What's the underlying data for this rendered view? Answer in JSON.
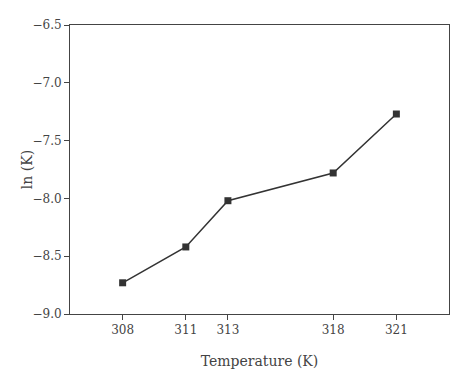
{
  "chart_data": {
    "type": "line",
    "x": [
      308,
      311,
      313,
      318,
      321
    ],
    "values": [
      -8.73,
      -8.42,
      -8.02,
      -7.78,
      -7.27
    ],
    "xlabel": "Temperature (K)",
    "ylabel": "ln (K)",
    "xlim": [
      305.5,
      323.5
    ],
    "ylim": [
      -9.0,
      -6.5
    ],
    "xticks": [
      308,
      311,
      313,
      318,
      321
    ],
    "yticks": [
      {
        "value": -9.0,
        "label": "−9.0"
      },
      {
        "value": -8.5,
        "label": "−8.5"
      },
      {
        "value": -8.0,
        "label": "−8.0"
      },
      {
        "value": -7.5,
        "label": "−7.5"
      },
      {
        "value": -7.0,
        "label": "−7.0"
      },
      {
        "value": -6.5,
        "label": "−6.5"
      }
    ],
    "color": "#333333",
    "marker": "square",
    "line_style": "solid",
    "grid": false
  }
}
